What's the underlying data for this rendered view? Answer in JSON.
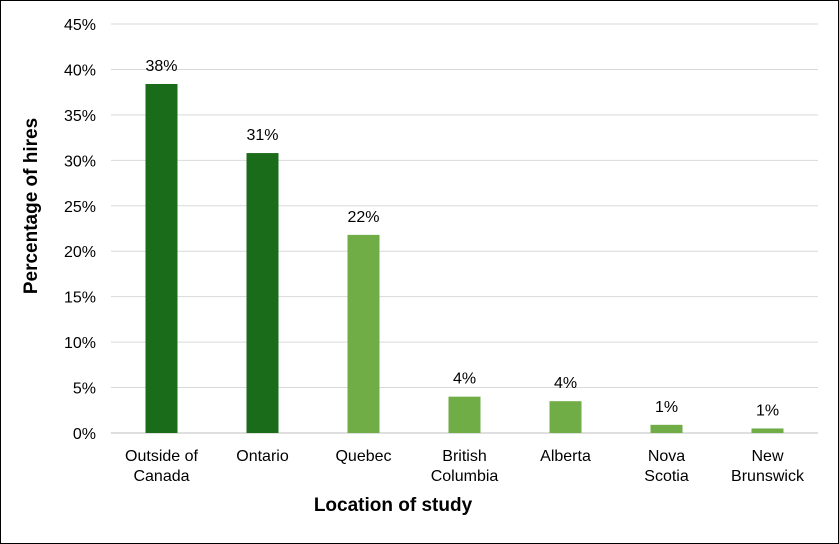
{
  "chart_data": {
    "type": "bar",
    "title": "",
    "xlabel": "Location of study",
    "ylabel": "Percentage of hires",
    "ylim": [
      0,
      45
    ],
    "yticks": [
      0,
      5,
      10,
      15,
      20,
      25,
      30,
      35,
      40,
      45
    ],
    "ytick_labels": [
      "0%",
      "5%",
      "10%",
      "15%",
      "20%",
      "25%",
      "30%",
      "35%",
      "40%",
      "45%"
    ],
    "grid": true,
    "legend": "none",
    "categories": [
      [
        "Outside of",
        "Canada"
      ],
      [
        "Ontario"
      ],
      [
        "Quebec"
      ],
      [
        "British",
        "Columbia"
      ],
      [
        "Alberta"
      ],
      [
        "Nova",
        "Scotia"
      ],
      [
        "New",
        "Brunswick"
      ]
    ],
    "values": [
      38.4,
      30.8,
      21.8,
      4.0,
      3.5,
      0.9,
      0.5
    ],
    "data_labels": [
      "38%",
      "31%",
      "22%",
      "4%",
      "4%",
      "1%",
      "1%"
    ],
    "colors": [
      "#1a6b1a",
      "#1a6b1a",
      "#70ad47",
      "#70ad47",
      "#70ad47",
      "#70ad47",
      "#70ad47"
    ],
    "gridline_color": "#d9d9d9",
    "axis_color": "#bfbfbf"
  }
}
